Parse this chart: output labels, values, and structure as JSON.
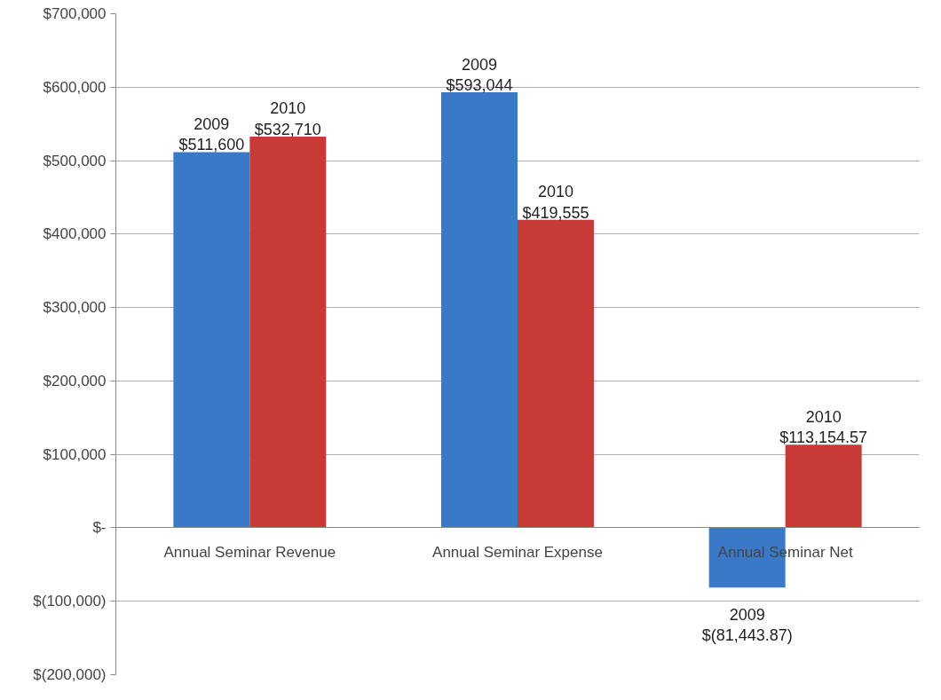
{
  "chart_data": {
    "type": "bar",
    "categories": [
      "Annual Seminar Revenue",
      "Annual Seminar Expense",
      "Annual Seminar Net"
    ],
    "series": [
      {
        "name": "2009",
        "color": "#3a78c8",
        "values": [
          511600,
          593044,
          -81443.87
        ],
        "value_labels": [
          "$511,600",
          "$593,044",
          "$(81,443.87)"
        ]
      },
      {
        "name": "2010",
        "color": "#c83a36",
        "values": [
          532710,
          419555,
          113154.57
        ],
        "value_labels": [
          "$532,710",
          "$419,555",
          "$113,154.57"
        ]
      }
    ],
    "ylim": [
      -200000,
      700000
    ],
    "yticks": [
      {
        "value": -200000,
        "label": "$(200,000)"
      },
      {
        "value": -100000,
        "label": "$(100,000)"
      },
      {
        "value": 0,
        "label": "$-"
      },
      {
        "value": 100000,
        "label": "$100,000"
      },
      {
        "value": 200000,
        "label": "$200,000"
      },
      {
        "value": 300000,
        "label": "$300,000"
      },
      {
        "value": 400000,
        "label": "$400,000"
      },
      {
        "value": 500000,
        "label": "$500,000"
      },
      {
        "value": 600000,
        "label": "$600,000"
      },
      {
        "value": 700000,
        "label": "$700,000"
      }
    ],
    "grid": "y"
  }
}
